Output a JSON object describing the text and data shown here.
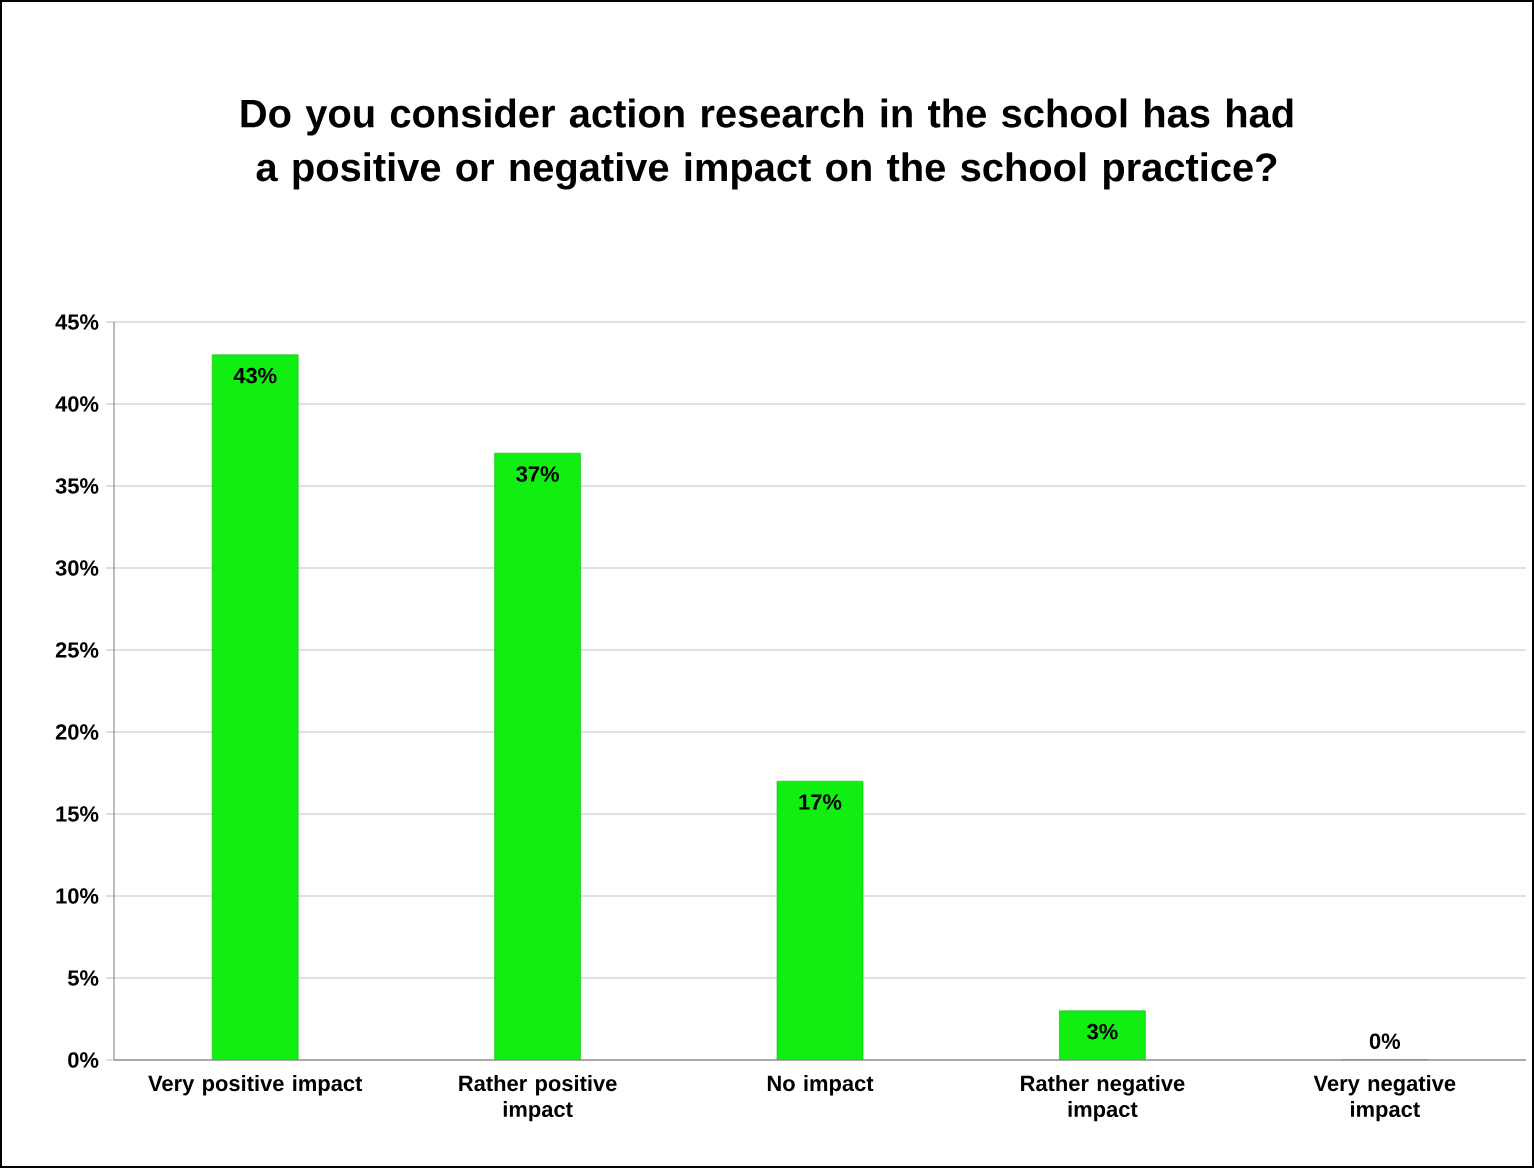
{
  "chart_data": {
    "type": "bar",
    "title": "Do you consider action research in the school has had a positive or negative impact on the school practice?",
    "categories": [
      "Very positive impact",
      "Rather positive impact",
      "No impact",
      "Rather negative impact",
      "Very negative impact"
    ],
    "values": [
      43,
      37,
      17,
      3,
      0
    ],
    "value_labels": [
      "43%",
      "37%",
      "17%",
      "3%",
      "0%"
    ],
    "color": "#11ee11",
    "ylim": [
      0,
      45
    ],
    "yticks": [
      {
        "value": 0,
        "label": "0%"
      },
      {
        "value": 5,
        "label": "5%"
      },
      {
        "value": 10,
        "label": "10%"
      },
      {
        "value": 15,
        "label": "15%"
      },
      {
        "value": 20,
        "label": "20%"
      },
      {
        "value": 25,
        "label": "25%"
      },
      {
        "value": 30,
        "label": "30%"
      },
      {
        "value": 35,
        "label": "35%"
      },
      {
        "value": 40,
        "label": "40%"
      },
      {
        "value": 45,
        "label": "45%"
      }
    ],
    "grid": "y"
  }
}
